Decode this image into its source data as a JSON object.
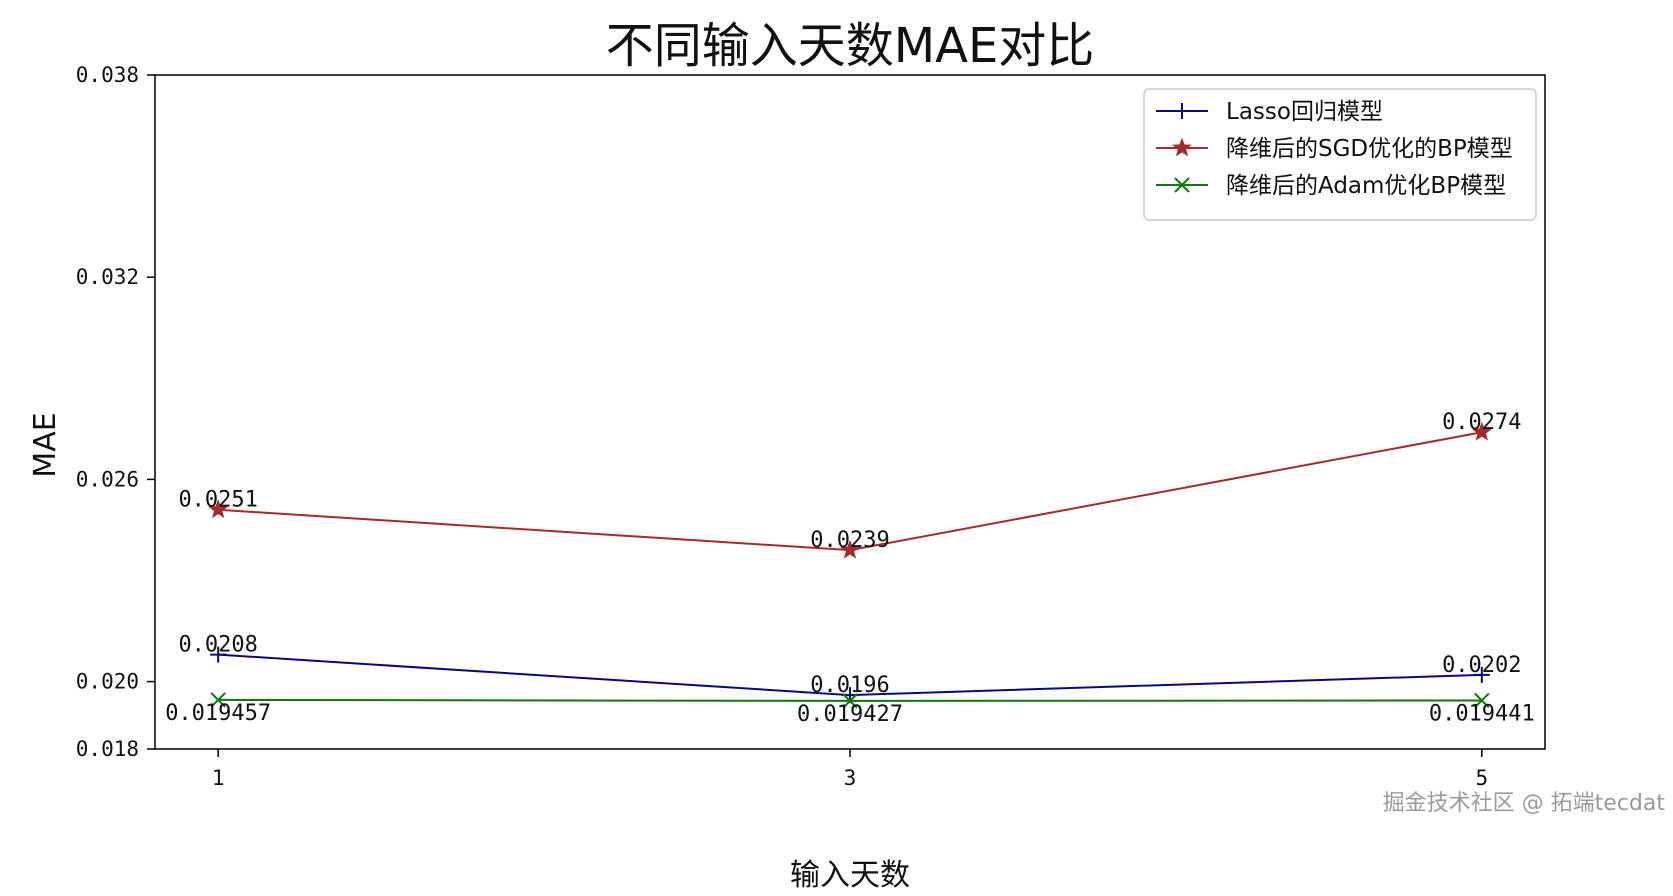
{
  "watermark": "掘金技术社区 @ 拓端tecdat",
  "chart_data": {
    "type": "line",
    "title": "不同输入天数MAE对比",
    "xlabel": "输入天数",
    "ylabel": "MAE",
    "x": [
      1,
      3,
      5
    ],
    "x_ticks": [
      "1",
      "3",
      "5"
    ],
    "y_ticks": [
      "0.018",
      "0.020",
      "0.026",
      "0.032",
      "0.038"
    ],
    "y_tick_values": [
      0.018,
      0.02,
      0.026,
      0.032,
      0.038
    ],
    "xlim": [
      0.8,
      5.2
    ],
    "ylim": [
      0.018,
      0.038
    ],
    "grid": false,
    "legend_position": "top-right",
    "series": [
      {
        "name": "Lasso回归模型",
        "values": [
          0.0208,
          0.0196,
          0.0202
        ],
        "labels": [
          "0.0208",
          "0.0196",
          "0.0202"
        ],
        "color": "#0a0a7a",
        "marker": "plus",
        "label_position": "above"
      },
      {
        "name": "降维后的SGD优化的BP模型",
        "values": [
          0.0251,
          0.0239,
          0.0274
        ],
        "labels": [
          "0.0251",
          "0.0239",
          "0.0274"
        ],
        "color": "#a52a2a",
        "marker": "star",
        "label_position": "above"
      },
      {
        "name": "降维后的Adam优化BP模型",
        "values": [
          0.019457,
          0.019427,
          0.019441
        ],
        "labels": [
          "0.019457",
          "0.019427",
          "0.019441"
        ],
        "color": "#0a7a0a",
        "marker": "x",
        "label_position": "below"
      }
    ]
  }
}
